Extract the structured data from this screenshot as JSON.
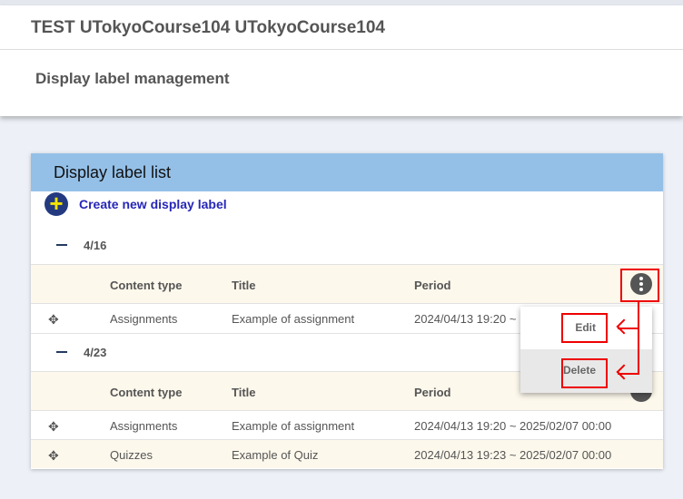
{
  "header": {
    "course_title": "TEST UTokyoCourse104 UTokyoCourse104",
    "page_title": "Display label management"
  },
  "card": {
    "title": "Display label list",
    "create_label": "Create new display label"
  },
  "columns": [
    "Content type",
    "Title",
    "Period"
  ],
  "groups": [
    {
      "label": "4/16",
      "rows": [
        {
          "type": "Assignments",
          "title": "Example of assignment",
          "period": "2024/04/13 19:20 ~"
        }
      ]
    },
    {
      "label": "4/23",
      "rows": [
        {
          "type": "Assignments",
          "title": "Example of assignment",
          "period": "2024/04/13 19:20  ~  2025/02/07 00:00"
        },
        {
          "type": "Quizzes",
          "title": "Example of Quiz",
          "period": "2024/04/13 19:23  ~  2025/02/07 00:00"
        }
      ]
    }
  ],
  "menu": {
    "edit": "Edit",
    "delete": "Delete"
  },
  "colors": {
    "card_header": "#94c0e8",
    "accent": "#2626b8",
    "annotation": "#ee0000"
  }
}
